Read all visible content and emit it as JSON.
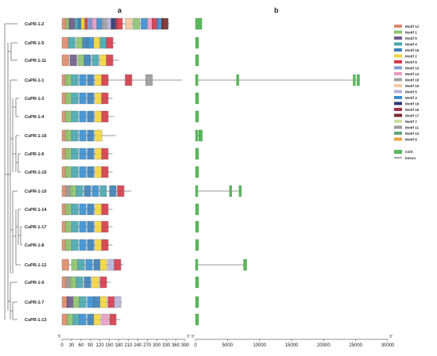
{
  "panels": {
    "a": "a",
    "b": "b"
  },
  "genes": [
    "CsPR-1-2",
    "CsPR-1-5",
    "CsPR-1-11",
    "CsPR-1-1",
    "CsPR-1-3",
    "CsPR-1-4",
    "CsPR-1-16",
    "CsPR-1-6",
    "CsPR-1-15",
    "CsPR-1-10",
    "CsPR-1-14",
    "CsPR-1-17",
    "CsPR-1-8",
    "CsPR-1-12",
    "CsPR-1-9",
    "CsPR-1-7",
    "CsPR-1-13"
  ],
  "motif_axis": {
    "start": "5'",
    "end": "3'",
    "ticks": [
      0,
      30,
      60,
      90,
      120,
      150,
      180,
      210,
      240,
      270,
      300,
      330,
      360,
      390
    ]
  },
  "gene_axis": {
    "start": "5'",
    "end": "3'",
    "ticks": [
      0,
      5000,
      10000,
      15000,
      20000,
      25000,
      30000
    ]
  },
  "motif_legend": [
    {
      "name": "Motif 12",
      "color": "#e08a6a"
    },
    {
      "name": "Motif 1",
      "color": "#8cc46e"
    },
    {
      "name": "Motif 9",
      "color": "#6e5b8c"
    },
    {
      "name": "Motif 4",
      "color": "#49a7b0"
    },
    {
      "name": "Motif 15",
      "color": "#3d7fb5"
    },
    {
      "name": "Motif 2",
      "color": "#f2d53c"
    },
    {
      "name": "Motif 6",
      "color": "#d43a4a"
    },
    {
      "name": "Motif 10",
      "color": "#7f9fd6"
    },
    {
      "name": "Motif 14",
      "color": "#e99bc3"
    },
    {
      "name": "Motif 18",
      "color": "#a0a0a0"
    },
    {
      "name": "Motif 19",
      "color": "#f5c7a0"
    },
    {
      "name": "Motif 5",
      "color": "#b8b0d8"
    },
    {
      "name": "Motif 3",
      "color": "#3a8fd0"
    },
    {
      "name": "Motif 16",
      "color": "#2c3a70"
    },
    {
      "name": "Motif 16",
      "color": "#a23148"
    },
    {
      "name": "Motif 17",
      "color": "#7a2a2a"
    },
    {
      "name": "Motif 7",
      "color": "#c9e0a0"
    },
    {
      "name": "Motif 11",
      "color": "#9c9c9c"
    },
    {
      "name": "Motif 13",
      "color": "#5fa87a"
    },
    {
      "name": "Motif 8",
      "color": "#f0a040"
    }
  ],
  "structure_legend": [
    {
      "name": "CDS",
      "color": "#5cb85c"
    },
    {
      "name": "Intron",
      "color": "#222222"
    }
  ],
  "protein_lengths": [
    340,
    170,
    180,
    380,
    160,
    165,
    170,
    160,
    160,
    220,
    160,
    160,
    160,
    195,
    155,
    190,
    185
  ],
  "motifs": [
    [
      [
        0,
        12
      ],
      [
        12,
        1
      ],
      [
        22,
        9
      ],
      [
        40,
        4
      ],
      [
        50,
        15
      ],
      [
        60,
        2
      ],
      [
        72,
        6
      ],
      [
        80,
        10
      ],
      [
        95,
        14
      ],
      [
        110,
        3
      ],
      [
        125,
        18
      ],
      [
        140,
        5
      ],
      [
        155,
        16
      ],
      [
        170,
        6
      ],
      [
        200,
        19
      ],
      [
        225,
        1
      ],
      [
        250,
        3
      ],
      [
        270,
        14
      ],
      [
        285,
        6
      ],
      [
        300,
        3
      ],
      [
        315,
        17
      ]
    ],
    [
      [
        0,
        12
      ],
      [
        20,
        4
      ],
      [
        45,
        1
      ],
      [
        65,
        15
      ],
      [
        80,
        3
      ],
      [
        100,
        2
      ],
      [
        120,
        4
      ],
      [
        140,
        6
      ]
    ],
    [
      [
        0,
        12
      ],
      [
        25,
        9
      ],
      [
        50,
        1
      ],
      [
        70,
        15
      ],
      [
        95,
        4
      ],
      [
        120,
        2
      ],
      [
        140,
        6
      ]
    ],
    [
      [
        0,
        12
      ],
      [
        10,
        1
      ],
      [
        30,
        4
      ],
      [
        55,
        3
      ],
      [
        80,
        15
      ],
      [
        105,
        2
      ],
      [
        125,
        6
      ],
      [
        200,
        6
      ],
      [
        265,
        11
      ]
    ],
    [
      [
        0,
        12
      ],
      [
        10,
        1
      ],
      [
        30,
        4
      ],
      [
        55,
        3
      ],
      [
        80,
        15
      ],
      [
        105,
        2
      ],
      [
        125,
        6
      ]
    ],
    [
      [
        0,
        12
      ],
      [
        10,
        1
      ],
      [
        30,
        4
      ],
      [
        55,
        3
      ],
      [
        80,
        15
      ],
      [
        105,
        2
      ],
      [
        125,
        6
      ]
    ],
    [
      [
        0,
        12
      ],
      [
        10,
        1
      ],
      [
        30,
        4
      ],
      [
        55,
        3
      ],
      [
        80,
        15
      ],
      [
        105,
        2
      ]
    ],
    [
      [
        0,
        12
      ],
      [
        10,
        1
      ],
      [
        30,
        4
      ],
      [
        55,
        3
      ],
      [
        80,
        15
      ],
      [
        105,
        2
      ],
      [
        125,
        6
      ]
    ],
    [
      [
        0,
        12
      ],
      [
        10,
        1
      ],
      [
        30,
        4
      ],
      [
        55,
        3
      ],
      [
        80,
        15
      ],
      [
        105,
        2
      ],
      [
        125,
        6
      ]
    ],
    [
      [
        0,
        12
      ],
      [
        12,
        11
      ],
      [
        25,
        1
      ],
      [
        45,
        4
      ],
      [
        70,
        15
      ],
      [
        95,
        3
      ],
      [
        120,
        4
      ],
      [
        150,
        15
      ],
      [
        175,
        6
      ]
    ],
    [
      [
        0,
        12
      ],
      [
        10,
        1
      ],
      [
        30,
        4
      ],
      [
        55,
        3
      ],
      [
        80,
        15
      ],
      [
        105,
        2
      ],
      [
        125,
        6
      ]
    ],
    [
      [
        0,
        12
      ],
      [
        10,
        1
      ],
      [
        30,
        4
      ],
      [
        55,
        3
      ],
      [
        80,
        15
      ],
      [
        105,
        2
      ],
      [
        125,
        6
      ]
    ],
    [
      [
        0,
        12
      ],
      [
        10,
        1
      ],
      [
        30,
        4
      ],
      [
        55,
        3
      ],
      [
        80,
        15
      ],
      [
        105,
        2
      ],
      [
        125,
        6
      ]
    ],
    [
      [
        0,
        12
      ],
      [
        30,
        1
      ],
      [
        50,
        4
      ],
      [
        75,
        3
      ],
      [
        100,
        15
      ],
      [
        120,
        2
      ],
      [
        145,
        5
      ],
      [
        165,
        6
      ]
    ],
    [
      [
        0,
        12
      ],
      [
        12,
        11
      ],
      [
        25,
        1
      ],
      [
        45,
        4
      ],
      [
        70,
        15
      ],
      [
        95,
        2
      ],
      [
        120,
        6
      ]
    ],
    [
      [
        0,
        12
      ],
      [
        15,
        9
      ],
      [
        35,
        1
      ],
      [
        55,
        4
      ],
      [
        80,
        3
      ],
      [
        100,
        15
      ],
      [
        120,
        2
      ],
      [
        145,
        6
      ],
      [
        165,
        5
      ]
    ],
    [
      [
        0,
        12
      ],
      [
        15,
        1
      ],
      [
        35,
        4
      ],
      [
        55,
        3
      ],
      [
        80,
        15
      ],
      [
        100,
        2
      ],
      [
        125,
        14
      ],
      [
        150,
        6
      ]
    ]
  ],
  "gene_structures": [
    [
      [
        0,
        1000
      ]
    ],
    [
      [
        0,
        500
      ]
    ],
    [
      [
        0,
        500
      ]
    ],
    [
      [
        0,
        400
      ],
      [
        6400,
        6500
      ],
      [
        24600,
        24800
      ],
      [
        25200,
        25600
      ]
    ],
    [
      [
        0,
        500
      ]
    ],
    [
      [
        0,
        500
      ]
    ],
    [
      [
        0,
        300
      ],
      [
        500,
        600
      ],
      [
        700,
        900
      ]
    ],
    [
      [
        0,
        500
      ]
    ],
    [
      [
        0,
        500
      ]
    ],
    [
      [
        0,
        300
      ],
      [
        5300,
        5500
      ],
      [
        6800,
        7100
      ]
    ],
    [
      [
        0,
        500
      ]
    ],
    [
      [
        0,
        500
      ]
    ],
    [
      [
        0,
        500
      ]
    ],
    [
      [
        0,
        200
      ],
      [
        7500,
        8000
      ]
    ],
    [
      [
        0,
        500
      ]
    ],
    [
      [
        0,
        500
      ]
    ],
    [
      [
        0,
        500
      ]
    ]
  ]
}
